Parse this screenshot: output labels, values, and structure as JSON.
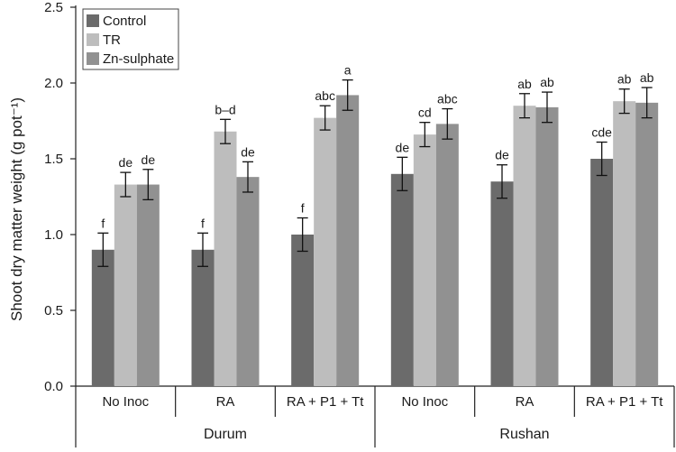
{
  "chart_data": {
    "type": "bar",
    "ylabel": "Shoot dry matter weight (g pot⁻¹)",
    "ylim": [
      0,
      2.5
    ],
    "yticks": [
      "0.0",
      "0.5",
      "1.0",
      "1.5",
      "2.0",
      "2.5"
    ],
    "grid": false,
    "legend_position": "top-left",
    "categories": [
      "No Inoc",
      "RA",
      "RA + P1 + Tt",
      "No Inoc",
      "RA",
      "RA + P1 + Tt"
    ],
    "groups": [
      {
        "label": "Durum",
        "categories": [
          "No Inoc",
          "RA",
          "RA + P1 + Tt"
        ]
      },
      {
        "label": "Rushan",
        "categories": [
          "No Inoc",
          "RA",
          "RA + P1 + Tt"
        ]
      }
    ],
    "series": [
      {
        "name": "Control",
        "color": "#6b6b6b",
        "values": [
          0.9,
          0.9,
          1.0,
          1.4,
          1.35,
          1.5
        ],
        "errors": [
          0.11,
          0.11,
          0.11,
          0.11,
          0.11,
          0.11
        ],
        "labels": [
          "f",
          "f",
          "f",
          "de",
          "de",
          "cde"
        ]
      },
      {
        "name": "TR",
        "color": "#bdbdbd",
        "values": [
          1.33,
          1.68,
          1.77,
          1.66,
          1.85,
          1.88
        ],
        "errors": [
          0.08,
          0.08,
          0.08,
          0.08,
          0.08,
          0.08
        ],
        "labels": [
          "de",
          "b–d",
          "abc",
          "cd",
          "ab",
          "ab"
        ]
      },
      {
        "name": "Zn-sulphate",
        "color": "#919191",
        "values": [
          1.33,
          1.38,
          1.92,
          1.73,
          1.84,
          1.87
        ],
        "errors": [
          0.1,
          0.1,
          0.1,
          0.1,
          0.1,
          0.1
        ],
        "labels": [
          "de",
          "de",
          "a",
          "abc",
          "ab",
          "ab"
        ]
      }
    ]
  }
}
